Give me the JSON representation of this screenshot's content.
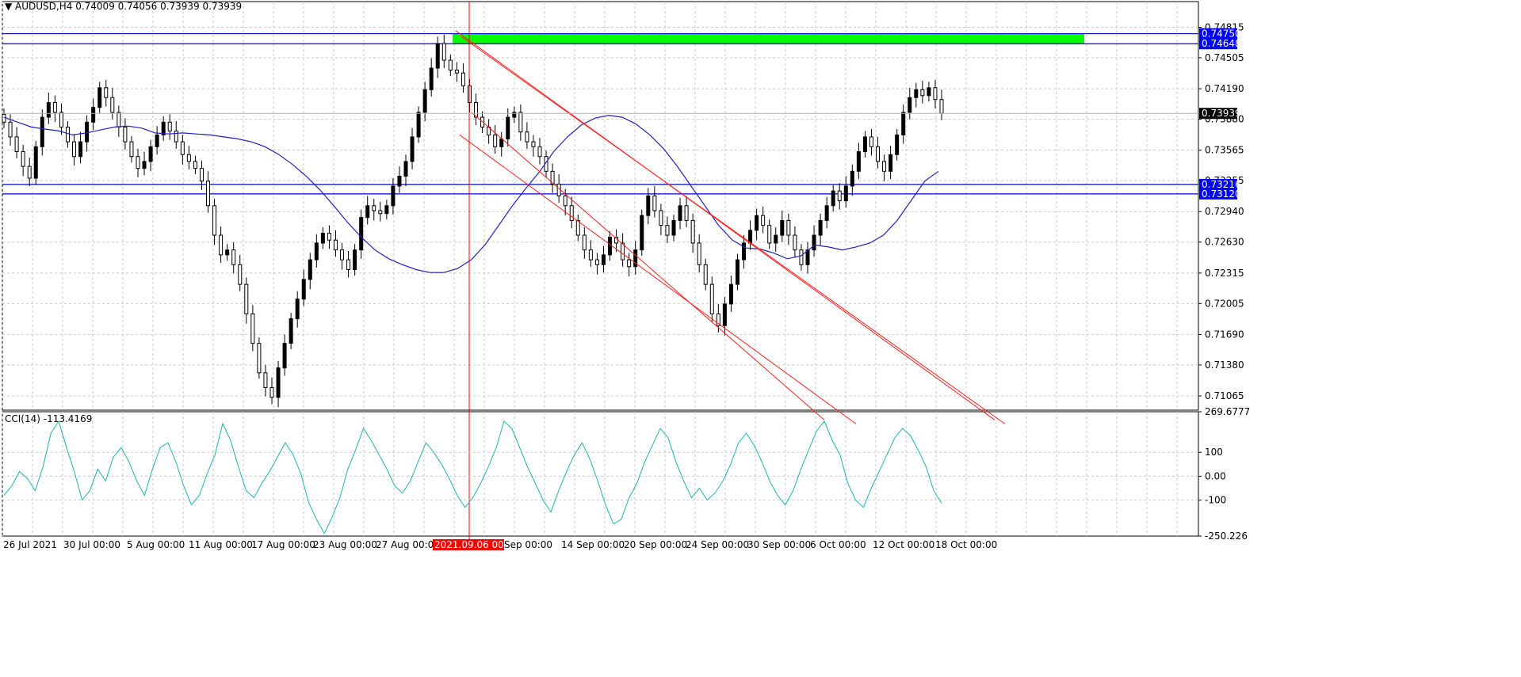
{
  "chart_data": [
    {
      "type": "candlestick",
      "symbol_header": "AUDUSD,H4",
      "ohlc_header": "0.74009 0.74056 0.73939 0.73939",
      "last_price_label": "0.73939",
      "last_price": 0.73939,
      "ylim": [
        0.7092,
        0.7498
      ],
      "y_ticks": [
        "0.74815",
        "0.74505",
        "0.74190",
        "0.73880",
        "0.73565",
        "0.73255",
        "0.72940",
        "0.72630",
        "0.72315",
        "0.72005",
        "0.71690",
        "0.71380",
        "0.71065"
      ],
      "x_ticks": [
        "26 Jul 2021",
        "30 Jul 00:00",
        "5 Aug 00:00",
        "11 Aug 00:00",
        "17 Aug 00:00",
        "23 Aug 00:00",
        "27 Aug 00:00",
        "2021.09.06 00:00",
        "Sep 00:00",
        "14 Sep 00:00",
        "20 Sep 00:00",
        "24 Sep 00:00",
        "30 Sep 00:00",
        "6 Oct 00:00",
        "12 Oct 00:00",
        "18 Oct 00:00"
      ],
      "x_tick_highlight_index": 7,
      "horizontal_levels": [
        {
          "label": "0.74750",
          "value": 0.7475
        },
        {
          "label": "0.74648",
          "value": 0.74648
        },
        {
          "label": "0.73216",
          "value": 0.73216
        },
        {
          "label": "0.73120",
          "value": 0.7312
        }
      ],
      "zone": {
        "from": 0.74648,
        "to": 0.7475,
        "color": "#00ff00"
      },
      "close_series": [
        0.7385,
        0.737,
        0.7355,
        0.734,
        0.7328,
        0.736,
        0.739,
        0.7405,
        0.7395,
        0.738,
        0.7365,
        0.735,
        0.7365,
        0.7385,
        0.74,
        0.742,
        0.741,
        0.7395,
        0.738,
        0.7365,
        0.735,
        0.7338,
        0.7345,
        0.736,
        0.7372,
        0.7385,
        0.7376,
        0.7365,
        0.7352,
        0.7345,
        0.7338,
        0.7325,
        0.73,
        0.727,
        0.725,
        0.7255,
        0.724,
        0.722,
        0.719,
        0.716,
        0.713,
        0.7115,
        0.7105,
        0.7135,
        0.716,
        0.7185,
        0.7205,
        0.7225,
        0.7245,
        0.7262,
        0.7272,
        0.7265,
        0.7255,
        0.7245,
        0.7235,
        0.7255,
        0.7288,
        0.73,
        0.7295,
        0.7292,
        0.73,
        0.732,
        0.733,
        0.7345,
        0.737,
        0.7395,
        0.7418,
        0.744,
        0.7465,
        0.7448,
        0.7438,
        0.7435,
        0.7422,
        0.7405,
        0.739,
        0.738,
        0.7372,
        0.736,
        0.7368,
        0.739,
        0.7395,
        0.7375,
        0.7365,
        0.736,
        0.735,
        0.7335,
        0.7322,
        0.731,
        0.73,
        0.7285,
        0.727,
        0.7255,
        0.7245,
        0.724,
        0.725,
        0.7268,
        0.7262,
        0.7245,
        0.7238,
        0.7255,
        0.729,
        0.731,
        0.7295,
        0.728,
        0.727,
        0.7285,
        0.73,
        0.7285,
        0.7262,
        0.724,
        0.722,
        0.719,
        0.7178,
        0.72,
        0.722,
        0.7245,
        0.7262,
        0.7275,
        0.729,
        0.728,
        0.7262,
        0.727,
        0.7285,
        0.727,
        0.7255,
        0.724,
        0.7255,
        0.727,
        0.7285,
        0.73,
        0.7315,
        0.7305,
        0.732,
        0.7335,
        0.7355,
        0.737,
        0.736,
        0.7345,
        0.7335,
        0.7352,
        0.7372,
        0.7395,
        0.741,
        0.7418,
        0.7412,
        0.742,
        0.7408,
        0.7394
      ],
      "moving_average": [
        0.739,
        0.7385,
        0.738,
        0.7378,
        0.7376,
        0.7372,
        0.7374,
        0.7377,
        0.738,
        0.7381,
        0.7379,
        0.7374,
        0.7373,
        0.7374,
        0.7373,
        0.7372,
        0.737,
        0.7368,
        0.7365,
        0.736,
        0.7352,
        0.7342,
        0.733,
        0.7316,
        0.73,
        0.7283,
        0.7268,
        0.7255,
        0.7246,
        0.724,
        0.7235,
        0.7232,
        0.7232,
        0.7236,
        0.7245,
        0.726,
        0.728,
        0.73,
        0.7318,
        0.7335,
        0.7355,
        0.737,
        0.7382,
        0.7389,
        0.7392,
        0.739,
        0.7383,
        0.7372,
        0.7358,
        0.734,
        0.732,
        0.73,
        0.728,
        0.7265,
        0.7257,
        0.7256,
        0.7252,
        0.7246,
        0.7249,
        0.726,
        0.7258,
        0.7255,
        0.7258,
        0.7262,
        0.727,
        0.7285,
        0.7305,
        0.7325,
        0.7335
      ],
      "channel_lines": [
        {
          "from": [
            0,
            0.7478
          ],
          "to": [
            1,
            0.7082
          ]
        },
        {
          "from": [
            0,
            0.7472
          ],
          "to": [
            1,
            0.7078
          ]
        },
        {
          "from": [
            0,
            0.7395
          ],
          "to": [
            1,
            0.7082
          ]
        },
        {
          "from": [
            0,
            0.7372
          ],
          "to": [
            1,
            0.7078
          ]
        }
      ],
      "vertical_marker_label": "2021.09.06 00:00"
    },
    {
      "type": "line",
      "indicator_header": "CCI(14) -113.4169",
      "ylim": [
        -250.226,
        269.6777
      ],
      "y_ticks": [
        "269.6777",
        "100",
        "0.00",
        "-100",
        "-250.226"
      ],
      "series": [
        {
          "name": "CCI(14)",
          "values": [
            -80,
            -40,
            20,
            -10,
            -60,
            40,
            180,
            230,
            120,
            20,
            -100,
            -60,
            30,
            -20,
            80,
            120,
            60,
            -20,
            -80,
            30,
            120,
            140,
            60,
            -40,
            -120,
            -80,
            10,
            90,
            220,
            150,
            40,
            -60,
            -90,
            -30,
            20,
            80,
            140,
            90,
            10,
            -110,
            -180,
            -240,
            -170,
            -90,
            30,
            110,
            200,
            150,
            90,
            30,
            -40,
            -70,
            -20,
            60,
            140,
            100,
            50,
            -10,
            -80,
            -130,
            -90,
            -30,
            40,
            120,
            230,
            200,
            120,
            40,
            -30,
            -100,
            -150,
            -60,
            20,
            90,
            140,
            70,
            -20,
            -120,
            -200,
            -180,
            -90,
            -30,
            60,
            130,
            200,
            160,
            60,
            -20,
            -90,
            -50,
            -100,
            -70,
            -20,
            50,
            140,
            180,
            130,
            60,
            -20,
            -80,
            -120,
            -60,
            30,
            110,
            190,
            230,
            150,
            90,
            -30,
            -100,
            -130,
            -50,
            20,
            90,
            160,
            200,
            170,
            110,
            40,
            -60,
            -113
          ]
        }
      ]
    }
  ]
}
